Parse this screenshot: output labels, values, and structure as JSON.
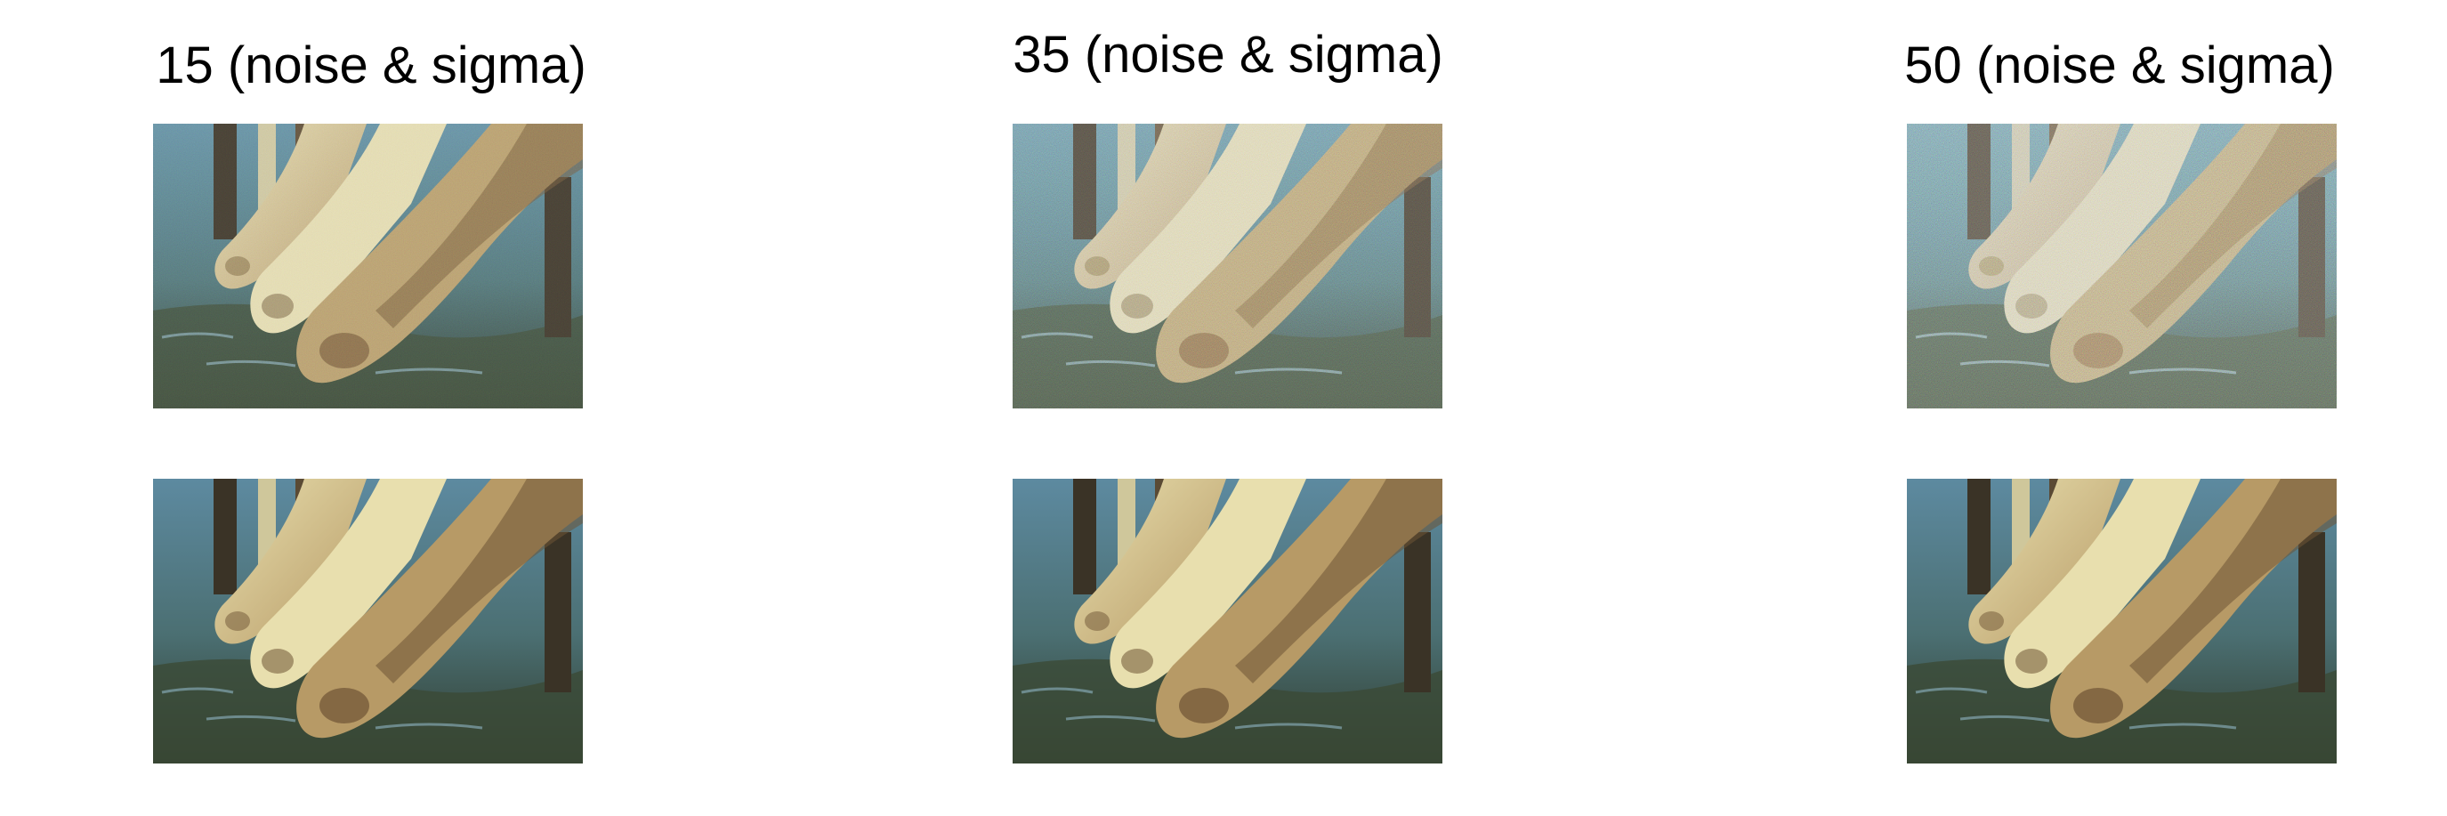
{
  "panels": [
    {
      "title": "15 (noise & sigma)",
      "noise_level": 15
    },
    {
      "title": "35 (noise & sigma)",
      "noise_level": 35
    },
    {
      "title": "50 (noise & sigma)",
      "noise_level": 50
    }
  ],
  "colors": {
    "water_dark": "#2f3a2c",
    "water_blue": "#5d8aa0",
    "camel_light": "#e8dfae",
    "camel_mid": "#b79a66",
    "camel_dark": "#6e5334"
  }
}
